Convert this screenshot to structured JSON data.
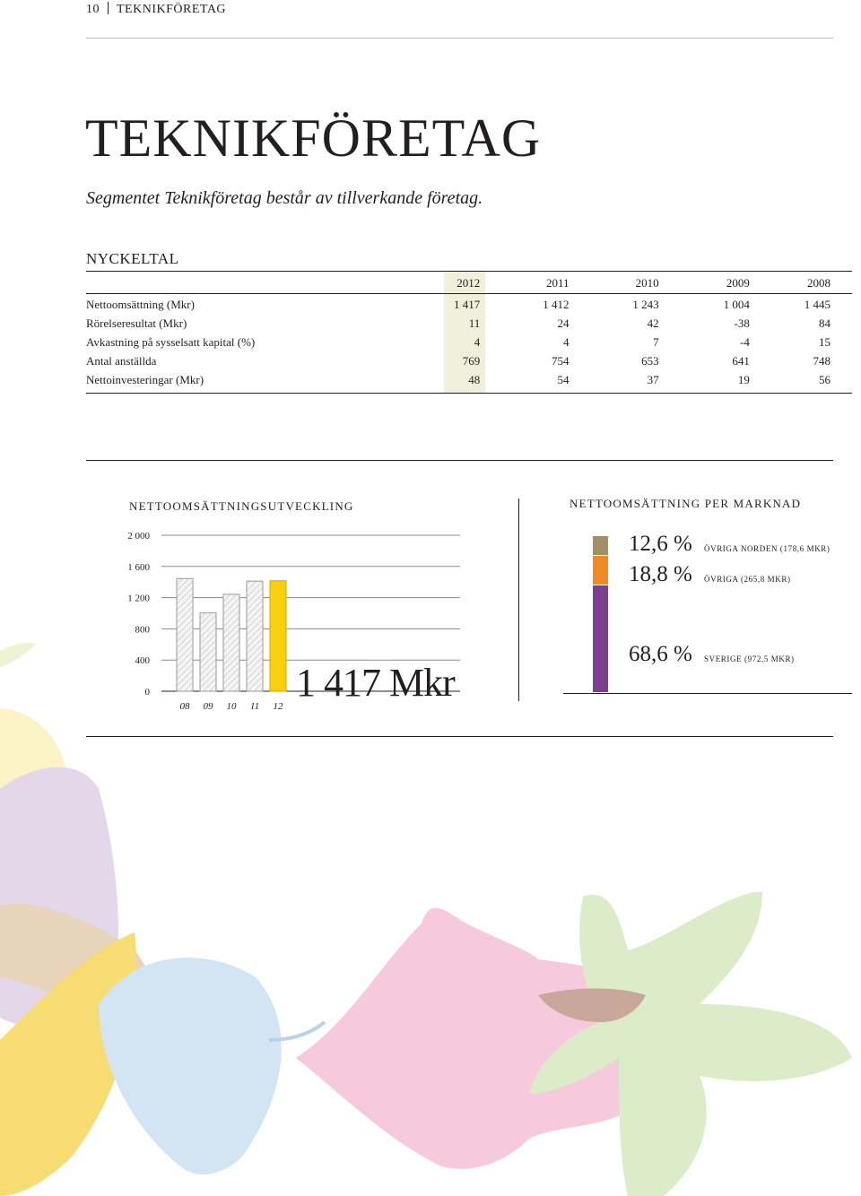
{
  "header": {
    "page_number": "10",
    "section": "TEKNIKFÖRETAG"
  },
  "title": "TEKNIKFÖRETAG",
  "intro": "Segmentet Teknikföretag består av tillverkande företag.",
  "nyckeltal": {
    "title": "NYCKELTAL",
    "years": [
      "2012",
      "2011",
      "2010",
      "2009",
      "2008"
    ],
    "rows": [
      {
        "label": "Nettoomsättning (Mkr)",
        "values": [
          "1 417",
          "1 412",
          "1 243",
          "1 004",
          "1 445"
        ]
      },
      {
        "label": "Rörelseresultat (Mkr)",
        "values": [
          "11",
          "24",
          "42",
          "-38",
          "84"
        ]
      },
      {
        "label": "Avkastning på sysselsatt kapital (%)",
        "values": [
          "4",
          "4",
          "7",
          "-4",
          "15"
        ]
      },
      {
        "label": "Antal anställda",
        "values": [
          "769",
          "754",
          "653",
          "641",
          "748"
        ]
      },
      {
        "label": "Nettoinvesteringar (Mkr)",
        "values": [
          "48",
          "54",
          "37",
          "19",
          "56"
        ]
      }
    ]
  },
  "chart_data": {
    "type": "bar",
    "title": "NETTOOMSÄTTNINGSUTVECKLING",
    "categories": [
      "08",
      "09",
      "10",
      "11",
      "12"
    ],
    "values": [
      1445,
      1004,
      1243,
      1412,
      1417
    ],
    "highlight_index": 4,
    "y_ticks": [
      2000,
      1600,
      1200,
      800,
      400,
      0
    ],
    "y_tick_labels": [
      "2 000",
      "1 600",
      "1 200",
      "800",
      "400",
      "0"
    ],
    "ylim": [
      0,
      2000
    ],
    "grid": true,
    "highlight_label": "1 417 Mkr",
    "colors": {
      "highlight": "#fbcf0b",
      "history_fill": "#f4f4f4",
      "history_stroke": "#9a9a9a"
    }
  },
  "market": {
    "title": "NETTOOMSÄTTNING PER MARKNAD",
    "segments": [
      {
        "pct_value": 12.6,
        "pct": "12,6 %",
        "label": "Övriga Norden (178,6 Mkr)",
        "color": "#a38f63"
      },
      {
        "pct_value": 18.8,
        "pct": "18,8 %",
        "label": "Övriga (265,8 Mkr)",
        "color": "#f08a24"
      },
      {
        "pct_value": 68.6,
        "pct": "68,6 %",
        "label": "Sverige (972,5 Mkr)",
        "color": "#7b3f8e"
      }
    ]
  }
}
